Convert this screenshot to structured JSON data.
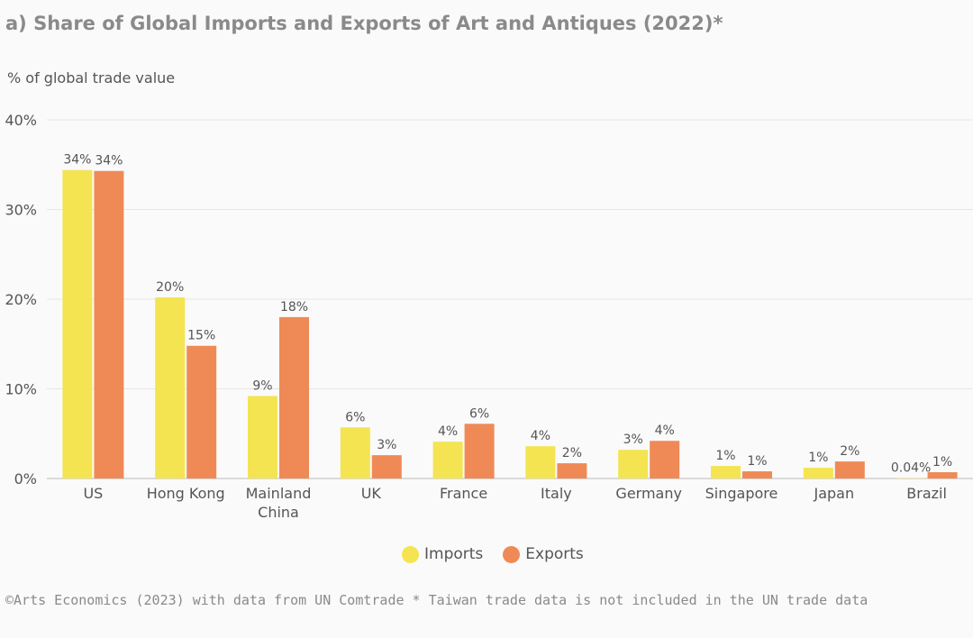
{
  "title": "a) Share of Global Imports and Exports of Art and Antiques (2022)*",
  "footer": "©Arts Economics (2023) with data from UN Comtrade * Taiwan trade data is not included in the UN trade data",
  "colors": {
    "imports": "#f4e452",
    "exports": "#ef8a57",
    "grid": "#e6e6e6",
    "axis": "#bbbbbb"
  },
  "chart_data": {
    "type": "bar",
    "ylabel": "% of global trade value",
    "ylim": [
      0,
      40
    ],
    "yticks": [
      0,
      10,
      20,
      30,
      40
    ],
    "ytick_labels": [
      "0%",
      "10%",
      "20%",
      "30%",
      "40%"
    ],
    "categories": [
      [
        "US"
      ],
      [
        "Hong Kong"
      ],
      [
        "Mainland",
        "China"
      ],
      [
        "UK"
      ],
      [
        "France"
      ],
      [
        "Italy"
      ],
      [
        "Germany"
      ],
      [
        "Singapore"
      ],
      [
        "Japan"
      ],
      [
        "Brazil"
      ]
    ],
    "series": [
      {
        "name": "Imports",
        "values": [
          34.4,
          20.2,
          9.2,
          5.7,
          4.1,
          3.6,
          3.2,
          1.4,
          1.2,
          0.04
        ],
        "labels": [
          "34%",
          "20%",
          "9%",
          "6%",
          "4%",
          "4%",
          "3%",
          "1%",
          "1%",
          "0.04%"
        ]
      },
      {
        "name": "Exports",
        "values": [
          34.3,
          14.8,
          18.0,
          2.6,
          6.1,
          1.7,
          4.2,
          0.8,
          1.9,
          0.7
        ],
        "labels": [
          "34%",
          "15%",
          "18%",
          "3%",
          "6%",
          "2%",
          "4%",
          "1%",
          "2%",
          "1%"
        ]
      }
    ],
    "legend": "bottom-center",
    "grid": true
  }
}
